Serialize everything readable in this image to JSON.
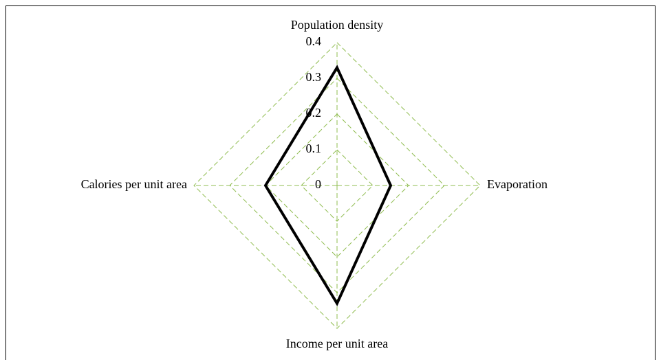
{
  "chart_data": {
    "type": "radar",
    "categories": [
      "Population density",
      "Evaporation",
      "Income per unit area",
      "Calories per unit area"
    ],
    "series": [
      {
        "color": "#000000",
        "values": [
          0.33,
          0.15,
          0.33,
          0.2
        ]
      }
    ],
    "rlim": [
      0,
      0.4
    ],
    "rticks": [
      0,
      0.1,
      0.2,
      0.3,
      0.4
    ],
    "grid": true,
    "grid_color": "#8fbc4f"
  }
}
